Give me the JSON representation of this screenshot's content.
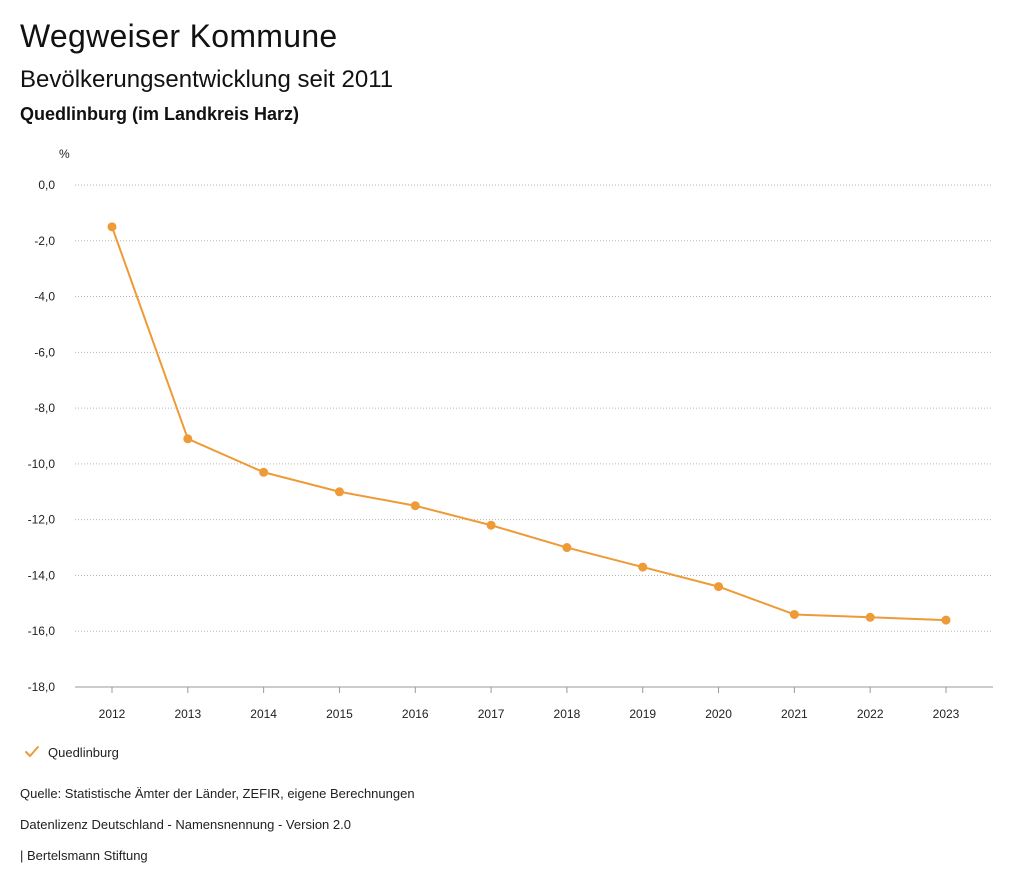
{
  "header": {
    "app_title": "Wegweiser Kommune",
    "subtitle": "Bevölkerungsentwicklung seit 2011",
    "region": "Quedlinburg (im Landkreis Harz)"
  },
  "legend": {
    "label": "Quedlinburg"
  },
  "footer": {
    "source": "Quelle: Statistische Ämter der Länder, ZEFIR, eigene Berechnungen",
    "license": "Datenlizenz Deutschland - Namensnennung - Version 2.0",
    "publisher": "| Bertelsmann Stiftung"
  },
  "colors": {
    "series": "#ee9a37",
    "grid": "#b5b5b5",
    "axis": "#999999"
  },
  "chart_data": {
    "type": "line",
    "title": "Bevölkerungsentwicklung seit 2011",
    "ylabel": "%",
    "xlabel": "",
    "categories": [
      "2012",
      "2013",
      "2014",
      "2015",
      "2016",
      "2017",
      "2018",
      "2019",
      "2020",
      "2021",
      "2022",
      "2023"
    ],
    "series": [
      {
        "name": "Quedlinburg",
        "values": [
          -1.5,
          -9.1,
          -10.3,
          -11.0,
          -11.5,
          -12.2,
          -13.0,
          -13.7,
          -14.4,
          -15.4,
          -15.5,
          -15.6
        ]
      }
    ],
    "ylim": [
      -18,
      0
    ],
    "yticks": [
      0,
      -2,
      -4,
      -6,
      -8,
      -10,
      -12,
      -14,
      -16,
      -18
    ],
    "ytick_labels": [
      "0,0",
      "-2,0",
      "-4,0",
      "-6,0",
      "-8,0",
      "-10,0",
      "-12,0",
      "-14,0",
      "-16,0",
      "-18,0"
    ],
    "grid": true,
    "legend_position": "bottom-left"
  }
}
